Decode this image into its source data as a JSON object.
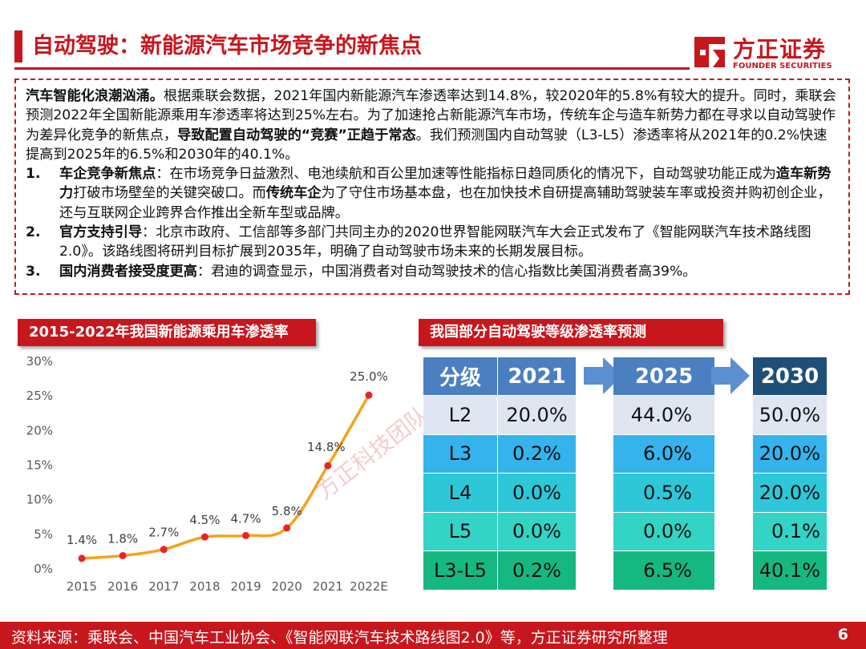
{
  "header": {
    "title": "自动驾驶：新能源汽车市场竞争的新焦点",
    "logo_cn": "方正证券",
    "logo_en": "FOUNDER SECURITIES",
    "logo_icon": "founder-logo-icon",
    "accent_color": "#c8161d"
  },
  "intro": {
    "lead_bold": "汽车智能化浪潮汹涌。",
    "text1": "根据乘联会数据，2021年国内新能源汽车渗透率达到14.8%，较2020年的5.8%有较大的提升。同时，乘联会预测2022年全国新能源乘用车渗透率将达到25%左右。为了加速抢占新能源汽车市场，传统车企与造车新势力都在寻求以自动驾驶作为差异化竞争的新焦点，",
    "bold2": "导致配置自动驾驶的“竞赛”正趋于常态",
    "text2": "。我们预测国内自动驾驶（L3-L5）渗透率将从2021年的0.2%快速提高到2025年的6.5%和2030年的40.1%。"
  },
  "points": [
    {
      "num": "1.",
      "head": "车企竞争新焦点",
      "t1": "：在市场竞争日益激烈、电池续航和百公里加速等性能指标日趋同质化的情况下，自动驾驶功能正成为",
      "b1": "造车新势力",
      "t2": "打破市场壁垒的关键突破口。而",
      "b2": "传统车企",
      "t3": "为了守住市场基本盘，也在加快技术自研提高辅助驾驶装车率或投资并购初创企业，还与互联网企业跨界合作推出全新车型或品牌。"
    },
    {
      "num": "2.",
      "head": "官方支持引导",
      "t1": "：北京市政府、工信部等多部门共同主办的2020世界智能网联汽车大会正式发布了《智能网联汽车技术路线图2.0》。该路线图将研判目标扩展到2035年，明确了自动驾驶市场未来的长期发展目标。"
    },
    {
      "num": "3.",
      "head": "国内消费者接受度更高",
      "t1": "：君迪的调查显示，中国消费者对自动驾驶技术的信心指数比美国消费者高39%。"
    }
  ],
  "left_section": {
    "title": "2015-2022年我国新能源乘用车渗透率"
  },
  "right_section": {
    "title": "我国部分自动驾驶等级渗透率预测"
  },
  "chart_data": {
    "type": "line",
    "title": "2015-2022年我国新能源乘用车渗透率",
    "categories": [
      "2015",
      "2016",
      "2017",
      "2018",
      "2019",
      "2020",
      "2021",
      "2022E"
    ],
    "values": [
      1.4,
      1.8,
      2.7,
      4.5,
      4.7,
      5.8,
      14.8,
      25.0
    ],
    "data_labels": [
      "1.4%",
      "1.8%",
      "2.7%",
      "4.5%",
      "4.7%",
      "5.8%",
      "14.8%",
      "25.0%"
    ],
    "y_ticks": [
      "0%",
      "5%",
      "10%",
      "15%",
      "20%",
      "25%",
      "30%"
    ],
    "ylim": [
      0,
      30
    ],
    "grid": false,
    "legend": "none",
    "line_color": "#f5a21b",
    "marker_color": "#e8242a"
  },
  "table": {
    "header": [
      "分级",
      "2021",
      "2025",
      "2030"
    ],
    "rows": [
      {
        "level": "L2",
        "y2021": "20.0%",
        "y2025": "44.0%",
        "y2030": "50.0%"
      },
      {
        "level": "L3",
        "y2021": "0.2%",
        "y2025": "6.0%",
        "y2030": "20.0%"
      },
      {
        "level": "L4",
        "y2021": "0.0%",
        "y2025": "0.5%",
        "y2030": "20.0%"
      },
      {
        "level": "L5",
        "y2021": "0.0%",
        "y2025": "0.0%",
        "y2030": "0.1%"
      },
      {
        "level": "L3-L5",
        "y2021": "0.2%",
        "y2025": "6.5%",
        "y2030": "40.1%"
      }
    ]
  },
  "watermark": "方正科技团队",
  "footer": {
    "source": "资料来源：乘联会、中国汽车工业协会、《智能网联汽车技术路线图2.0》等，方正证券研究所整理",
    "page": "6"
  }
}
